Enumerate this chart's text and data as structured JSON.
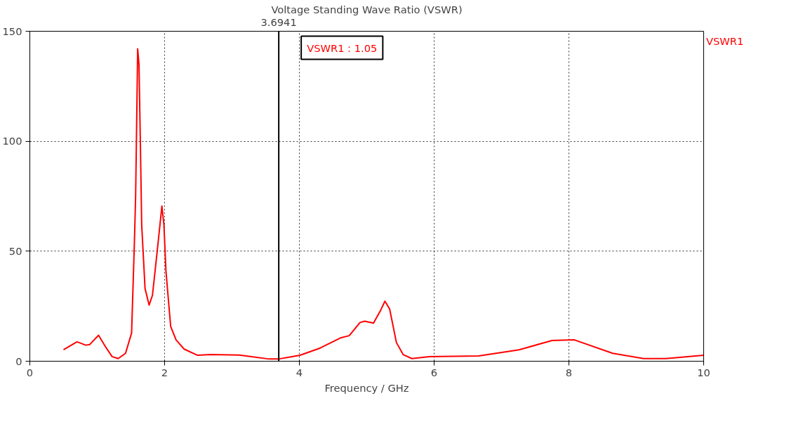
{
  "chart_data": {
    "type": "line",
    "title": "Voltage Standing Wave Ratio (VSWR)",
    "xlabel": "Frequency / GHz",
    "x": [
      0.5,
      0.7,
      0.83,
      0.89,
      1.02,
      1.12,
      1.22,
      1.31,
      1.42,
      1.51,
      1.55,
      1.57,
      1.59,
      1.6,
      1.62,
      1.64,
      1.66,
      1.71,
      1.77,
      1.82,
      1.89,
      1.96,
      1.99,
      2.02,
      2.09,
      2.17,
      2.29,
      2.49,
      2.68,
      3.11,
      3.55,
      3.69,
      4.01,
      4.31,
      4.61,
      4.74,
      4.9,
      4.97,
      5.1,
      5.2,
      5.27,
      5.34,
      5.44,
      5.54,
      5.67,
      5.93,
      6.66,
      7.26,
      7.75,
      8.08,
      8.65,
      9.11,
      9.44,
      10.0
    ],
    "series": [
      {
        "name": "VSWR1",
        "color": "#ff0000",
        "values": [
          5.2,
          8.8,
          7.3,
          7.6,
          11.8,
          6.7,
          2.1,
          1.2,
          3.6,
          12.8,
          52,
          75,
          118,
          142,
          135,
          100,
          62,
          33,
          25.5,
          30,
          50,
          70.5,
          62,
          41,
          15.8,
          9.7,
          5.5,
          2.7,
          3.0,
          2.8,
          1.0,
          1.0,
          2.7,
          6.0,
          10.6,
          11.6,
          17.6,
          18.2,
          17.3,
          22.8,
          27.3,
          23.7,
          8.5,
          3.0,
          1.2,
          2.1,
          2.4,
          5.2,
          9.4,
          9.7,
          3.6,
          1.2,
          1.2,
          2.7
        ]
      }
    ],
    "xlim": [
      0,
      10
    ],
    "xticks": [
      0,
      2,
      4,
      6,
      8,
      10
    ],
    "ylim": [
      0,
      150
    ],
    "yticks": [
      0,
      50,
      100,
      150
    ],
    "grid": true,
    "line_style": "solid",
    "marker": "none",
    "ref_lines": [
      {
        "axis": "x",
        "value": 3.6941,
        "label": "3.6941",
        "color": "#000000",
        "line_style": "solid"
      }
    ],
    "annotations": [
      "VSWR1 : 1.05"
    ]
  }
}
